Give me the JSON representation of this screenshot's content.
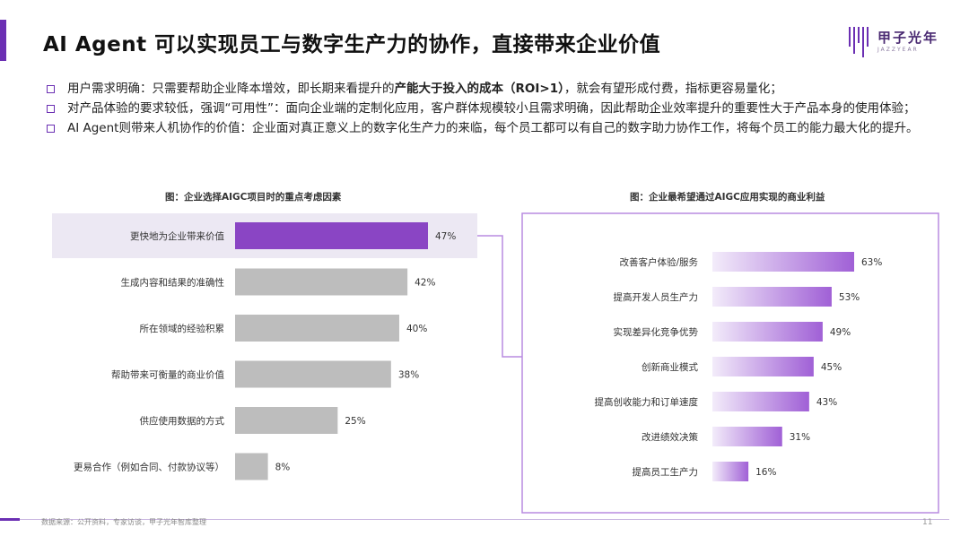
{
  "title": "AI Agent 可以实现员工与数字生产力的协作，直接带来企业价值",
  "logo": {
    "name": "甲子光年",
    "sub": "JAZZYEAR"
  },
  "bullets": [
    {
      "pre": "用户需求明确：只需要帮助企业降本增效，即长期来看提升的",
      "bold": "产能大于投入的成本（ROI>1）",
      "post": "，就会有望形成付费，指标更容易量化；"
    },
    {
      "pre": "对产品体验的要求较低，强调“可用性”：面向企业端的定制化应用，客户群体规模较小且需求明确，因此帮助企业效率提升的重要性大于产品本身的使用体验；",
      "bold": "",
      "post": ""
    },
    {
      "pre": "AI Agent则带来人机协作的价值：企业面对真正意义上的数字化生产力的来临，每个员工都可以有自己的数字助力协作工作，将每个员工的能力最大化的提升。",
      "bold": "",
      "post": ""
    }
  ],
  "chart_data": [
    {
      "type": "bar",
      "orientation": "horizontal",
      "title": "图：企业选择AIGC项目时的重点考虑因素",
      "categories": [
        "更快地为企业带来价值",
        "生成内容和结果的准确性",
        "所在领域的经验积累",
        "帮助带来可衡量的商业价值",
        "供应使用数据的方式",
        "更易合作（例如合同、付款协议等）"
      ],
      "values": [
        47,
        42,
        40,
        38,
        25,
        8
      ],
      "labels": [
        "47%",
        "42%",
        "40%",
        "38%",
        "25%",
        "8%"
      ],
      "highlight_index": 0,
      "colors": {
        "highlight": "#8a45c4",
        "normal": "#bdbdbd",
        "highlight_row": "#ece8f3"
      }
    },
    {
      "type": "bar",
      "orientation": "horizontal",
      "title": "图：企业最希望通过AIGC应用实现的商业利益",
      "categories": [
        "改善客户体验/服务",
        "提高开发人员生产力",
        "实现差异化竞争优势",
        "创新商业模式",
        "提高创收能力和订单速度",
        "改进绩效决策",
        "提高员工生产力"
      ],
      "values": [
        63,
        53,
        49,
        45,
        43,
        31,
        16
      ],
      "labels": [
        "63%",
        "53%",
        "49%",
        "45%",
        "43%",
        "31%",
        "16%"
      ],
      "colors": {
        "gradient_start": "#f3ecfa",
        "gradient_end": "#a060d6",
        "frame": "#b88be0"
      }
    }
  ],
  "footer": {
    "source": "数据来源：公开资料，专家访谈，甲子光年智库整理",
    "page": "11"
  }
}
